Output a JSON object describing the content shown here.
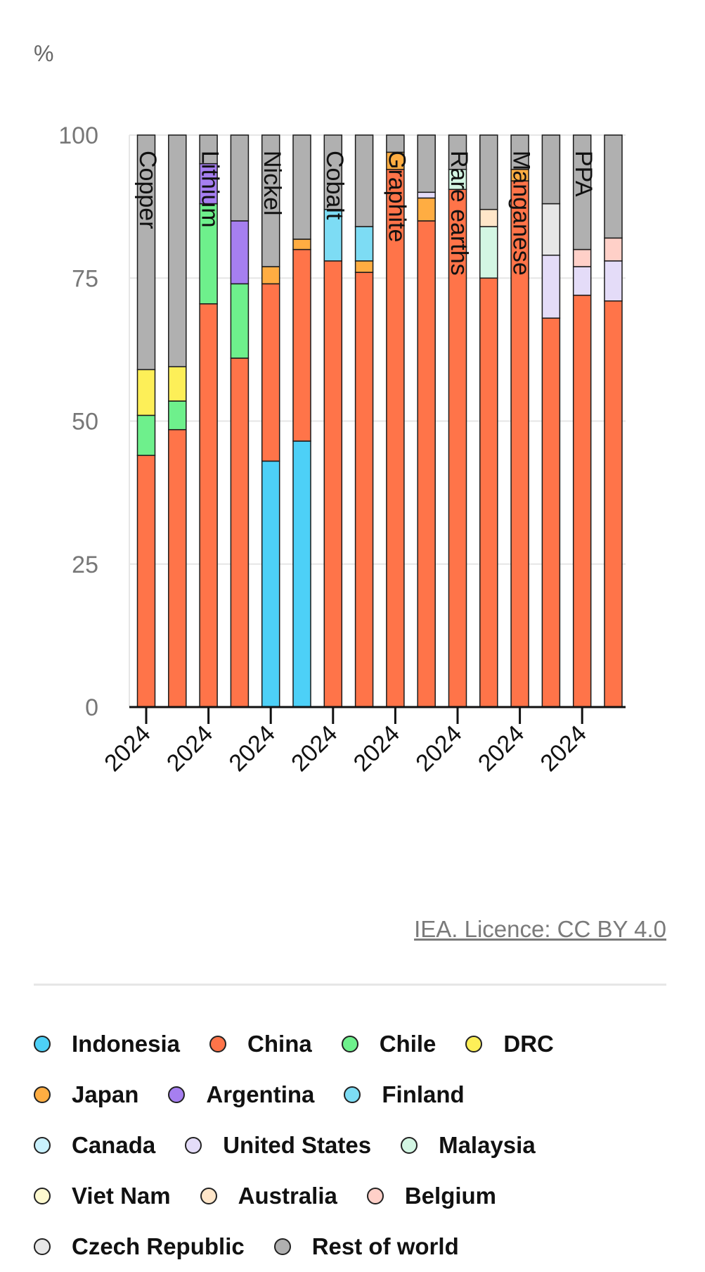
{
  "chart_data": {
    "type": "bar",
    "stacked": true,
    "unit": "%",
    "ylim": [
      0,
      100
    ],
    "yticks": [
      0,
      25,
      50,
      75,
      100
    ],
    "grid": true,
    "groups": [
      "Copper",
      "Lithium",
      "Nickel",
      "Cobalt",
      "Graphite",
      "Rare earths",
      "Manganese",
      "PPA"
    ],
    "x_tick_label": "2024",
    "bars": [
      {
        "group": "Copper",
        "segments": {
          "China": 44,
          "Chile": 7,
          "DRC": 8,
          "Rest of world": 41
        }
      },
      {
        "group": "Copper",
        "segments": {
          "China": 48.5,
          "Chile": 5,
          "DRC": 6,
          "Rest of world": 40.5
        }
      },
      {
        "group": "Lithium",
        "segments": {
          "China": 70.5,
          "Chile": 17.5,
          "Argentina": 7,
          "Rest of world": 5
        }
      },
      {
        "group": "Lithium",
        "segments": {
          "China": 61,
          "Chile": 13,
          "Argentina": 11,
          "Rest of world": 15
        }
      },
      {
        "group": "Nickel",
        "segments": {
          "Indonesia": 43,
          "China": 31,
          "Japan": 3,
          "Rest of world": 23
        }
      },
      {
        "group": "Nickel",
        "segments": {
          "Indonesia": 46.5,
          "China": 33.5,
          "Japan": 1.8,
          "Rest of world": 18.2
        }
      },
      {
        "group": "Cobalt",
        "segments": {
          "China": 78,
          "Finland": 9,
          "Rest of world": 13
        }
      },
      {
        "group": "Cobalt",
        "segments": {
          "China": 76,
          "Japan": 2,
          "Finland": 6,
          "Rest of world": 16
        }
      },
      {
        "group": "Graphite",
        "segments": {
          "China": 94,
          "Japan": 3,
          "Rest of world": 3
        }
      },
      {
        "group": "Graphite",
        "segments": {
          "China": 85,
          "Japan": 4,
          "United States": 1,
          "Rest of world": 10
        }
      },
      {
        "group": "Rare earths",
        "segments": {
          "China": 90.5,
          "Malaysia": 3.5,
          "Rest of world": 6
        }
      },
      {
        "group": "Rare earths",
        "segments": {
          "China": 75,
          "Malaysia": 9,
          "Australia": 3,
          "Rest of world": 13
        }
      },
      {
        "group": "Manganese",
        "segments": {
          "China": 92,
          "Japan": 2,
          "Rest of world": 6
        }
      },
      {
        "group": "Manganese",
        "segments": {
          "China": 68,
          "United States": 11,
          "Czech Republic": 9,
          "Rest of world": 12
        }
      },
      {
        "group": "PPA",
        "segments": {
          "China": 72,
          "United States": 5,
          "Belgium": 3,
          "Rest of world": 20
        }
      },
      {
        "group": "PPA",
        "segments": {
          "China": 71,
          "United States": 7,
          "Belgium": 4,
          "Rest of world": 18
        }
      }
    ],
    "legend": [
      {
        "name": "Indonesia",
        "color": "#4dd0f7"
      },
      {
        "name": "China",
        "color": "#ff7449"
      },
      {
        "name": "Chile",
        "color": "#6ef08c"
      },
      {
        "name": "DRC",
        "color": "#fdef58"
      },
      {
        "name": "Japan",
        "color": "#ffad42"
      },
      {
        "name": "Argentina",
        "color": "#a67ff0"
      },
      {
        "name": "Finland",
        "color": "#7ddcf4"
      },
      {
        "name": "Canada",
        "color": "#c9f1fd"
      },
      {
        "name": "United States",
        "color": "#e4dcf8"
      },
      {
        "name": "Malaysia",
        "color": "#d3f6e3"
      },
      {
        "name": "Viet Nam",
        "color": "#fdf9cf"
      },
      {
        "name": "Australia",
        "color": "#ffe6c9"
      },
      {
        "name": "Belgium",
        "color": "#ffd0c8"
      },
      {
        "name": "Czech Republic",
        "color": "#e7e7e7"
      },
      {
        "name": "Rest of world",
        "color": "#b0b0b0"
      }
    ],
    "legend_rows": [
      [
        "Indonesia",
        "China",
        "Chile",
        "DRC"
      ],
      [
        "Japan",
        "Argentina",
        "Finland"
      ],
      [
        "Canada",
        "United States",
        "Malaysia"
      ],
      [
        "Viet Nam",
        "Australia",
        "Belgium"
      ],
      [
        "Czech Republic",
        "Rest of world"
      ]
    ]
  },
  "credit": "IEA. Licence: CC BY 4.0"
}
